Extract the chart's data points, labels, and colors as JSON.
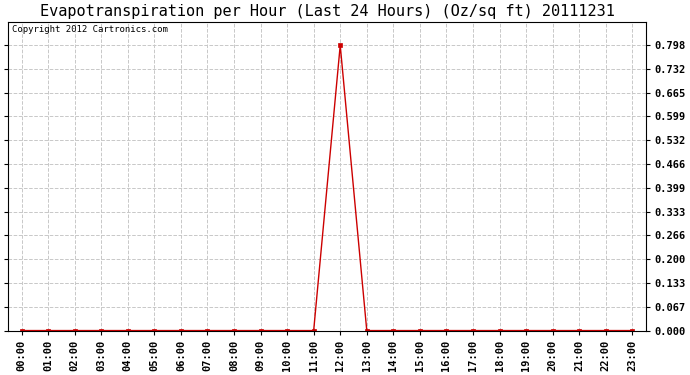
{
  "title": "Evapotranspiration per Hour (Last 24 Hours) (Oz/sq ft) 20111231",
  "copyright_text": "Copyright 2012 Cartronics.com",
  "line_color": "#cc0000",
  "marker_color": "#cc0000",
  "background_color": "#ffffff",
  "plot_bg_color": "#ffffff",
  "grid_color": "#c8c8c8",
  "hours": [
    0,
    1,
    2,
    3,
    4,
    5,
    6,
    7,
    8,
    9,
    10,
    11,
    12,
    13,
    14,
    15,
    16,
    17,
    18,
    19,
    20,
    21,
    22,
    23
  ],
  "values": [
    0,
    0,
    0,
    0,
    0,
    0,
    0,
    0,
    0,
    0,
    0,
    0,
    0.798,
    0,
    0,
    0,
    0,
    0,
    0,
    0,
    0,
    0,
    0,
    0
  ],
  "ylim": [
    0,
    0.864
  ],
  "yticks": [
    0.0,
    0.067,
    0.133,
    0.2,
    0.266,
    0.333,
    0.399,
    0.466,
    0.532,
    0.599,
    0.665,
    0.732,
    0.798
  ],
  "title_fontsize": 11,
  "tick_fontsize": 7.5,
  "copyright_fontsize": 6.5
}
